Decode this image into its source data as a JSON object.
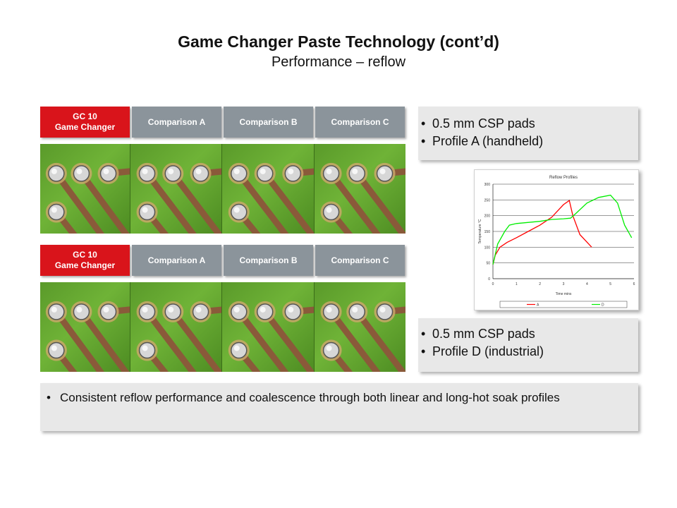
{
  "title": "Game Changer Paste Technology (cont’d)",
  "subtitle": "Performance – reflow",
  "column_labels": [
    {
      "line1": "GC 10",
      "line2": "Game Changer"
    },
    {
      "line1": "Comparison A",
      "line2": ""
    },
    {
      "line1": "Comparison B",
      "line2": ""
    },
    {
      "line1": "Comparison C",
      "line2": ""
    }
  ],
  "info_top": [
    "0.5 mm CSP pads",
    "Profile A (handheld)"
  ],
  "info_bottom": [
    "0.5 mm CSP pads",
    "Profile D (industrial)"
  ],
  "bottom_note": "Consistent reflow performance and coalescence through both linear and long-hot soak profiles",
  "colors": {
    "accent_red": "#d9141b",
    "label_gray": "#8b949b",
    "pcb_green": "#6fb337",
    "trace_copper": "#8a5a3a"
  },
  "chart_data": {
    "type": "line",
    "title": "Reflow Profiles",
    "xlabel": "Time mins",
    "ylabel": "Temperature °C",
    "xlim": [
      0,
      6
    ],
    "ylim": [
      0,
      300
    ],
    "xticks": [
      0,
      1,
      2,
      3,
      4,
      5,
      6
    ],
    "yticks": [
      0,
      50,
      100,
      150,
      200,
      250,
      300
    ],
    "grid": true,
    "legend": "bottom",
    "series": [
      {
        "name": "A",
        "color": "#ff0000",
        "x": [
          0,
          0.1,
          0.3,
          0.6,
          1.0,
          1.5,
          2.0,
          2.5,
          3.0,
          3.25,
          3.4,
          3.7,
          4.2
        ],
        "y": [
          45,
          75,
          100,
          115,
          130,
          150,
          170,
          195,
          235,
          248,
          200,
          140,
          100
        ]
      },
      {
        "name": "D",
        "color": "#00ee00",
        "x": [
          0,
          0.2,
          0.5,
          0.7,
          1.0,
          2.0,
          2.5,
          3.0,
          3.3,
          3.5,
          4.0,
          4.5,
          5.0,
          5.3,
          5.6,
          5.9
        ],
        "y": [
          45,
          110,
          150,
          170,
          175,
          182,
          188,
          190,
          192,
          205,
          240,
          258,
          265,
          240,
          170,
          130
        ]
      }
    ]
  }
}
